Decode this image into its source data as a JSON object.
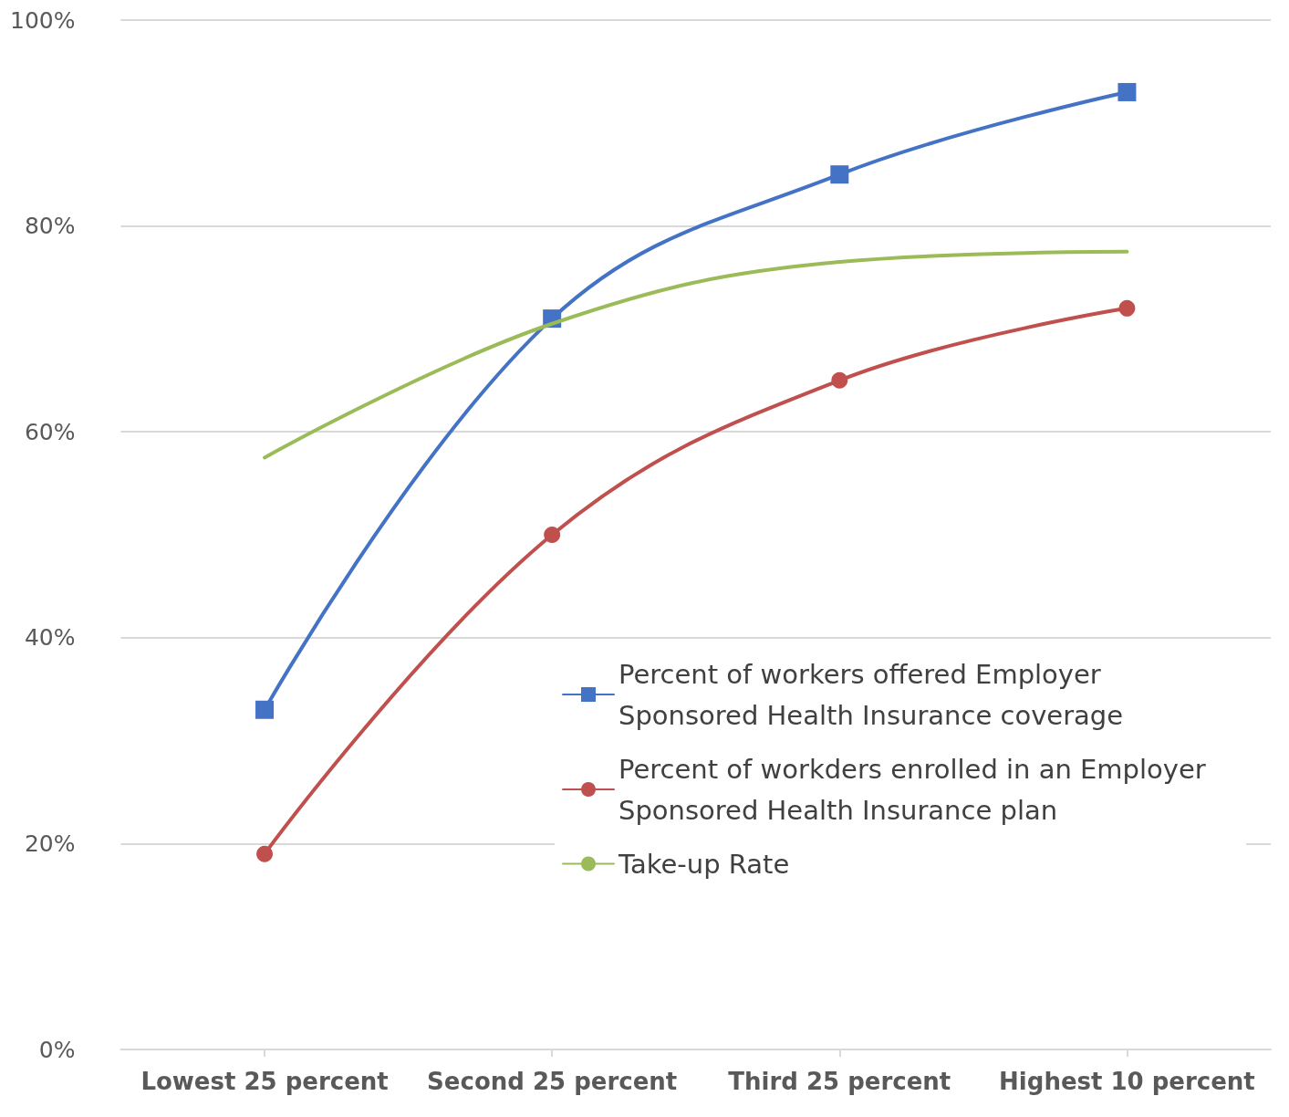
{
  "chart_data": {
    "type": "line",
    "categories": [
      "Lowest 25 percent",
      "Second 25 percent",
      "Third 25 percent",
      "Highest 10 percent"
    ],
    "series": [
      {
        "name": "Percent of workers offered Employer Sponsored Health Insurance coverage",
        "color": "#4472c4",
        "marker": "square",
        "values": [
          33,
          71,
          85,
          93
        ]
      },
      {
        "name": "Percent of workders enrolled in an Employer Sponsored Health Insurance plan",
        "color": "#c0504d",
        "marker": "circle",
        "values": [
          19,
          50,
          65,
          72
        ]
      },
      {
        "name": "Take-up Rate",
        "color": "#9bbb59",
        "marker": "none",
        "values": [
          57.5,
          70.5,
          76.5,
          77.5
        ]
      }
    ],
    "ylim": [
      0,
      100
    ],
    "yticks": [
      {
        "value": 0,
        "label": "0%"
      },
      {
        "value": 20,
        "label": "20%"
      },
      {
        "value": 40,
        "label": "40%"
      },
      {
        "value": 60,
        "label": "60%"
      },
      {
        "value": 80,
        "label": "80%"
      },
      {
        "value": 100,
        "label": "100%"
      }
    ],
    "grid": "y",
    "legend": "right",
    "line_style": "solid"
  }
}
